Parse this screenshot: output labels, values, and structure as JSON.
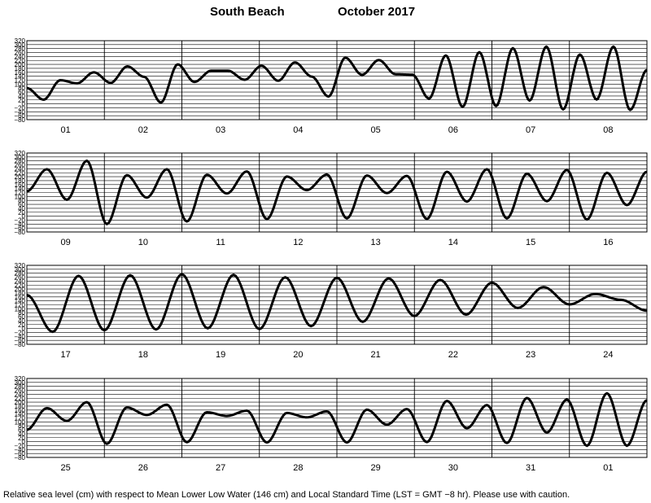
{
  "header": {
    "place": "South Beach",
    "month": "October   2017"
  },
  "footer": {
    "caption": "Relative sea level (cm) with respect to Mean Lower Low Water (146 cm) and Local Standard Time (LST = GMT −8 hr). Please use with caution."
  },
  "chart_data": {
    "type": "line",
    "title": "South Beach   October   2017",
    "ylabel": "",
    "ylim": [
      -80,
      320
    ],
    "yticks": [
      -80,
      -60,
      -40,
      -20,
      0,
      20,
      40,
      60,
      80,
      100,
      120,
      140,
      160,
      180,
      200,
      220,
      240,
      260,
      280,
      300,
      320
    ],
    "ytick_labels": [
      "−80",
      "−60",
      "−40",
      "−20",
      "0",
      "20",
      "40",
      "60",
      "80",
      "100",
      "120",
      "140",
      "160",
      "180",
      "200",
      "220",
      "240",
      "260",
      "280",
      "300",
      "320"
    ],
    "grid": true,
    "rows": [
      {
        "days": [
          "01",
          "02",
          "03",
          "04",
          "05",
          "06",
          "07",
          "08"
        ],
        "values": [
          80,
          21,
          120,
          104,
          160,
          106,
          190,
          137,
          7,
          200,
          111,
          168,
          168,
          122,
          193,
          117,
          210,
          138,
          37,
          234,
          147,
          222,
          150,
          148,
          27,
          245,
          -15,
          262,
          -11,
          282,
          17,
          290,
          -28,
          250,
          22,
          290,
          -31,
          172
        ]
      },
      {
        "days": [
          "09",
          "10",
          "11",
          "12",
          "13",
          "14",
          "15",
          "16"
        ],
        "values": [
          126,
          238,
          83,
          281,
          -40,
          208,
          94,
          238,
          -27,
          210,
          115,
          227,
          -15,
          201,
          132,
          211,
          -11,
          206,
          117,
          204,
          -14,
          225,
          74,
          238,
          -11,
          215,
          76,
          234,
          -17,
          220,
          56,
          225
        ]
      },
      {
        "days": [
          "17",
          "18",
          "19",
          "20",
          "21",
          "22",
          "23",
          "24"
        ],
        "values": [
          170,
          -17,
          267,
          -9,
          270,
          -5,
          275,
          1,
          272,
          -3,
          260,
          12,
          257,
          34,
          254,
          63,
          246,
          70,
          232,
          104,
          210,
          122,
          175,
          145,
          90
        ]
      },
      {
        "days": [
          "25",
          "26",
          "27",
          "28",
          "29",
          "30",
          "31",
          "01"
        ],
        "values": [
          60,
          170,
          105,
          200,
          -11,
          173,
          135,
          187,
          -3,
          149,
          130,
          157,
          -4,
          145,
          123,
          153,
          -4,
          162,
          86,
          165,
          -2,
          206,
          68,
          185,
          -7,
          221,
          46,
          213,
          -21,
          245,
          -21,
          210
        ]
      }
    ]
  }
}
